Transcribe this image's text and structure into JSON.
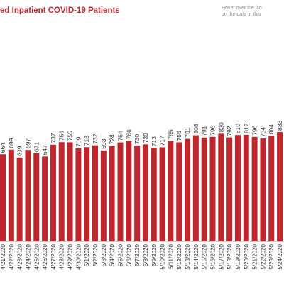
{
  "header": {
    "title_prefix": "ed",
    "title": "Inpatient COVID-19 Patients",
    "hint_line1": "Hover over the ico",
    "hint_line2": "on the data in this"
  },
  "colors": {
    "bar": "#c0272d",
    "title": "#c1272d"
  },
  "chart_data": {
    "type": "bar",
    "categories": [
      "4/21/2020",
      "4/22/2020",
      "4/23/2020",
      "4/24/2020",
      "4/25/2020",
      "4/26/2020",
      "4/27/2020",
      "4/28/2020",
      "4/29/2020",
      "4/30/2020",
      "5/1/2020",
      "5/2/2020",
      "5/3/2020",
      "5/4/2020",
      "5/5/2020",
      "5/6/2020",
      "5/7/2020",
      "5/8/2020",
      "5/9/2020",
      "5/10/2020",
      "5/11/2020",
      "5/12/2020",
      "5/13/2020",
      "5/14/2020",
      "5/15/2020",
      "5/16/2020",
      "5/17/2020",
      "5/18/2020",
      "5/19/2020",
      "5/20/2020",
      "5/21/2020",
      "5/22/2020",
      "5/23/2020",
      "5/24/2020"
    ],
    "values": [
      664,
      699,
      639,
      697,
      671,
      647,
      737,
      756,
      755,
      709,
      718,
      732,
      693,
      728,
      754,
      766,
      730,
      739,
      713,
      717,
      765,
      755,
      781,
      808,
      791,
      796,
      820,
      792,
      810,
      812,
      796,
      784,
      804,
      833
    ],
    "value_labels": [
      "664",
      "699",
      "639",
      "697",
      "671",
      "647",
      "737",
      "756",
      "755",
      "709",
      "718",
      "732",
      "693",
      "728",
      "754",
      "766",
      "730",
      "739",
      "713",
      "717",
      "765",
      "755",
      "781",
      "808",
      "791",
      "796",
      "820",
      "792",
      "810",
      "812",
      "796",
      "784",
      "804",
      "833"
    ],
    "ylim": [
      0,
      833
    ]
  }
}
